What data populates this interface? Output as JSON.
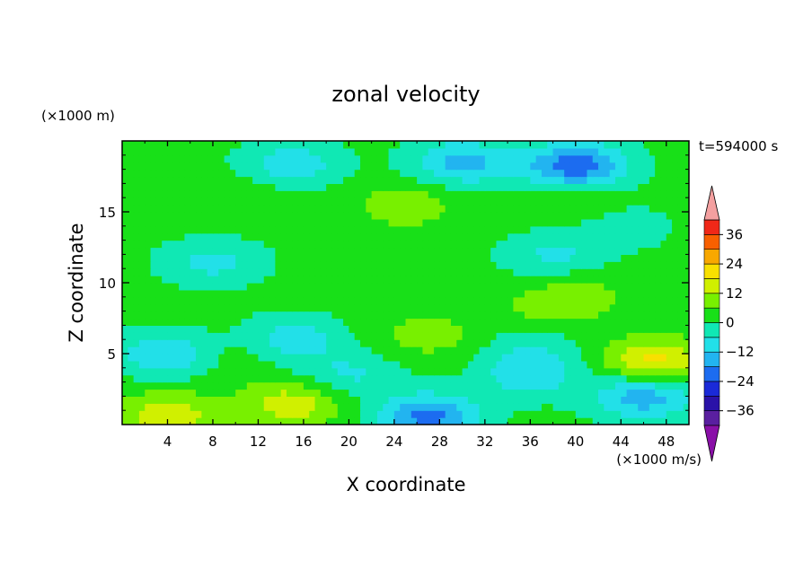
{
  "chart_data": {
    "type": "heatmap",
    "title": "zonal velocity",
    "xlabel": "X coordinate",
    "ylabel": "Z coordinate",
    "x_units": "(×1000 m/s)",
    "y_units": "(×1000 m)",
    "time_label": "t=594000 s",
    "xlim": [
      0,
      50
    ],
    "ylim": [
      0,
      20
    ],
    "x_ticks": [
      4,
      8,
      12,
      16,
      20,
      24,
      28,
      32,
      36,
      40,
      44,
      48
    ],
    "y_ticks": [
      5,
      10,
      15
    ],
    "colorbar": {
      "labels": [
        36,
        24,
        12,
        0,
        -12,
        -24,
        -36
      ],
      "levels": [
        -42,
        -36,
        -30,
        -24,
        -18,
        -12,
        -6,
        0,
        6,
        12,
        18,
        24,
        30,
        36,
        42
      ],
      "colors": [
        "#5a1fa0",
        "#2a12a8",
        "#1a2ad8",
        "#1c6cf0",
        "#22b4f0",
        "#22e0e8",
        "#10e8b4",
        "#18e018",
        "#78f000",
        "#d0f000",
        "#f8e000",
        "#f8a800",
        "#f86000",
        "#f02818",
        "#e80000"
      ],
      "under_color": "#8a10a8",
      "over_color": "#f4a0a0"
    },
    "field_anomalies": [
      {
        "x": 25,
        "z": 15.5,
        "u": 10
      },
      {
        "x": 10,
        "z": 15.8,
        "u": 6
      },
      {
        "x": 40,
        "z": 15.5,
        "u": 6
      },
      {
        "x": 27,
        "z": 13,
        "u": 2
      },
      {
        "x": 40,
        "z": 9,
        "u": 9
      },
      {
        "x": 37,
        "z": 8,
        "u": 6
      },
      {
        "x": 27,
        "z": 6.3,
        "u": 9
      },
      {
        "x": 15,
        "z": 1.5,
        "u": 16
      },
      {
        "x": 4,
        "z": 0.7,
        "u": 16
      },
      {
        "x": 47,
        "z": 4.5,
        "u": 20
      },
      {
        "x": 10,
        "z": 5,
        "u": 6
      },
      {
        "x": 36,
        "z": 5.5,
        "u": -4
      },
      {
        "x": 4,
        "z": 5,
        "u": -12
      },
      {
        "x": 15,
        "z": 6,
        "u": -10
      },
      {
        "x": 36,
        "z": 3.5,
        "u": -10
      },
      {
        "x": 46,
        "z": 2,
        "u": -16
      },
      {
        "x": 27,
        "z": 0.6,
        "u": -20
      },
      {
        "x": 40,
        "z": 18.3,
        "u": -22
      },
      {
        "x": 30,
        "z": 18.5,
        "u": -14
      },
      {
        "x": 15,
        "z": 18.4,
        "u": -10
      },
      {
        "x": 8,
        "z": 11.5,
        "u": -8
      },
      {
        "x": 38,
        "z": 12,
        "u": -7
      },
      {
        "x": 44,
        "z": 14,
        "u": -4
      },
      {
        "x": 20,
        "z": 3.5,
        "u": -7
      }
    ]
  }
}
